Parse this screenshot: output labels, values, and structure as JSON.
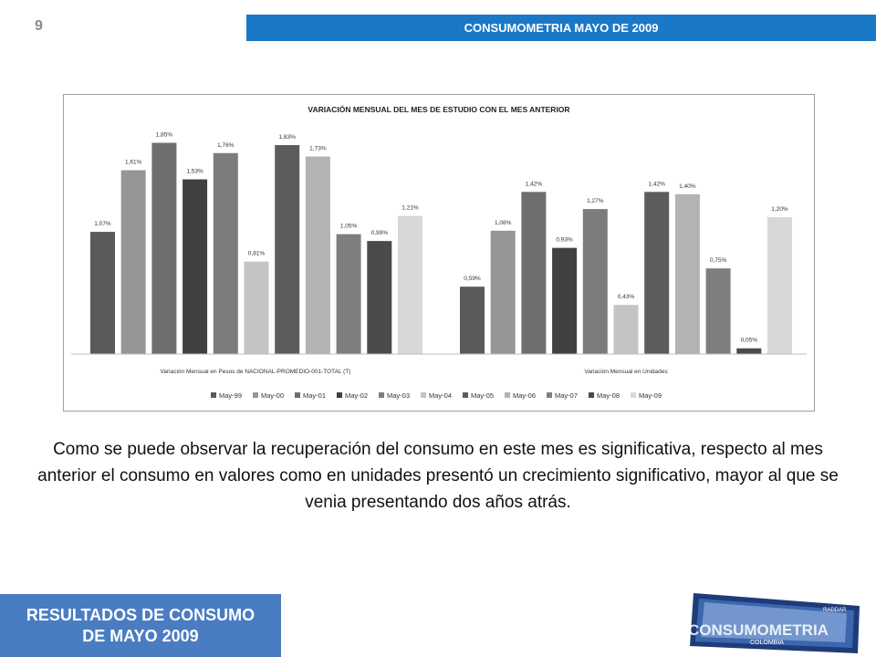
{
  "page": {
    "number": "9",
    "header_title": "CONSUMOMETRIA MAYO DE 2009"
  },
  "chart_data": {
    "type": "bar",
    "title": "VARIACIÓN MENSUAL DEL MES DE ESTUDIO CON EL MES ANTERIOR",
    "categories": [
      "Variación Mensual en Pesos de NACIONAL-PROMEDIO-001-TOTAL (T)",
      "Variación Mensual en Unidades"
    ],
    "series": [
      {
        "name": "May-99",
        "values": [
          1.07,
          0.59
        ],
        "labels": [
          "1,07%",
          "0,59%"
        ],
        "color": "#5a5a5a"
      },
      {
        "name": "May-00",
        "values": [
          1.61,
          1.08
        ],
        "labels": [
          "1,61%",
          "1,08%"
        ],
        "color": "#969696"
      },
      {
        "name": "May-01",
        "values": [
          1.85,
          1.42
        ],
        "labels": [
          "1,85%",
          "1,42%"
        ],
        "color": "#6e6e6e"
      },
      {
        "name": "May-02",
        "values": [
          1.53,
          0.93
        ],
        "labels": [
          "1,53%",
          "0,93%"
        ],
        "color": "#404040"
      },
      {
        "name": "May-03",
        "values": [
          1.76,
          1.27
        ],
        "labels": [
          "1,76%",
          "1,27%"
        ],
        "color": "#7c7c7c"
      },
      {
        "name": "May-04",
        "values": [
          0.81,
          0.43
        ],
        "labels": [
          "0,81%",
          "0,43%"
        ],
        "color": "#c4c4c4"
      },
      {
        "name": "May-05",
        "values": [
          1.83,
          1.42
        ],
        "labels": [
          "1,83%",
          "1,42%"
        ],
        "color": "#5c5c5c"
      },
      {
        "name": "May-06",
        "values": [
          1.73,
          1.4
        ],
        "labels": [
          "1,73%",
          "1,40%"
        ],
        "color": "#b3b3b3"
      },
      {
        "name": "May-07",
        "values": [
          1.05,
          0.75
        ],
        "labels": [
          "1,05%",
          "0,75%"
        ],
        "color": "#7e7e7e"
      },
      {
        "name": "May-08",
        "values": [
          0.99,
          0.05
        ],
        "labels": [
          "0,99%",
          "0,05%"
        ],
        "color": "#4a4a4a"
      },
      {
        "name": "May-09",
        "values": [
          1.21,
          1.2
        ],
        "labels": [
          "1,21%",
          "1,20%"
        ],
        "color": "#d8d8d8"
      }
    ],
    "ylim": [
      0,
      1.95
    ],
    "legend_position": "bottom",
    "grid": false
  },
  "description": "Como se puede observar la recuperación del consumo en este mes es significativa, respecto al mes anterior el consumo en valores como en unidades presentó un crecimiento significativo, mayor al que se venia presentando dos años atrás.",
  "footer": {
    "line1": "RESULTADOS DE CONSUMO",
    "line2": "DE MAYO 2009"
  },
  "logo": {
    "text": "CONSUMOMETRIA",
    "subtext": "COLOMBIA",
    "badge": "RADDAR"
  }
}
